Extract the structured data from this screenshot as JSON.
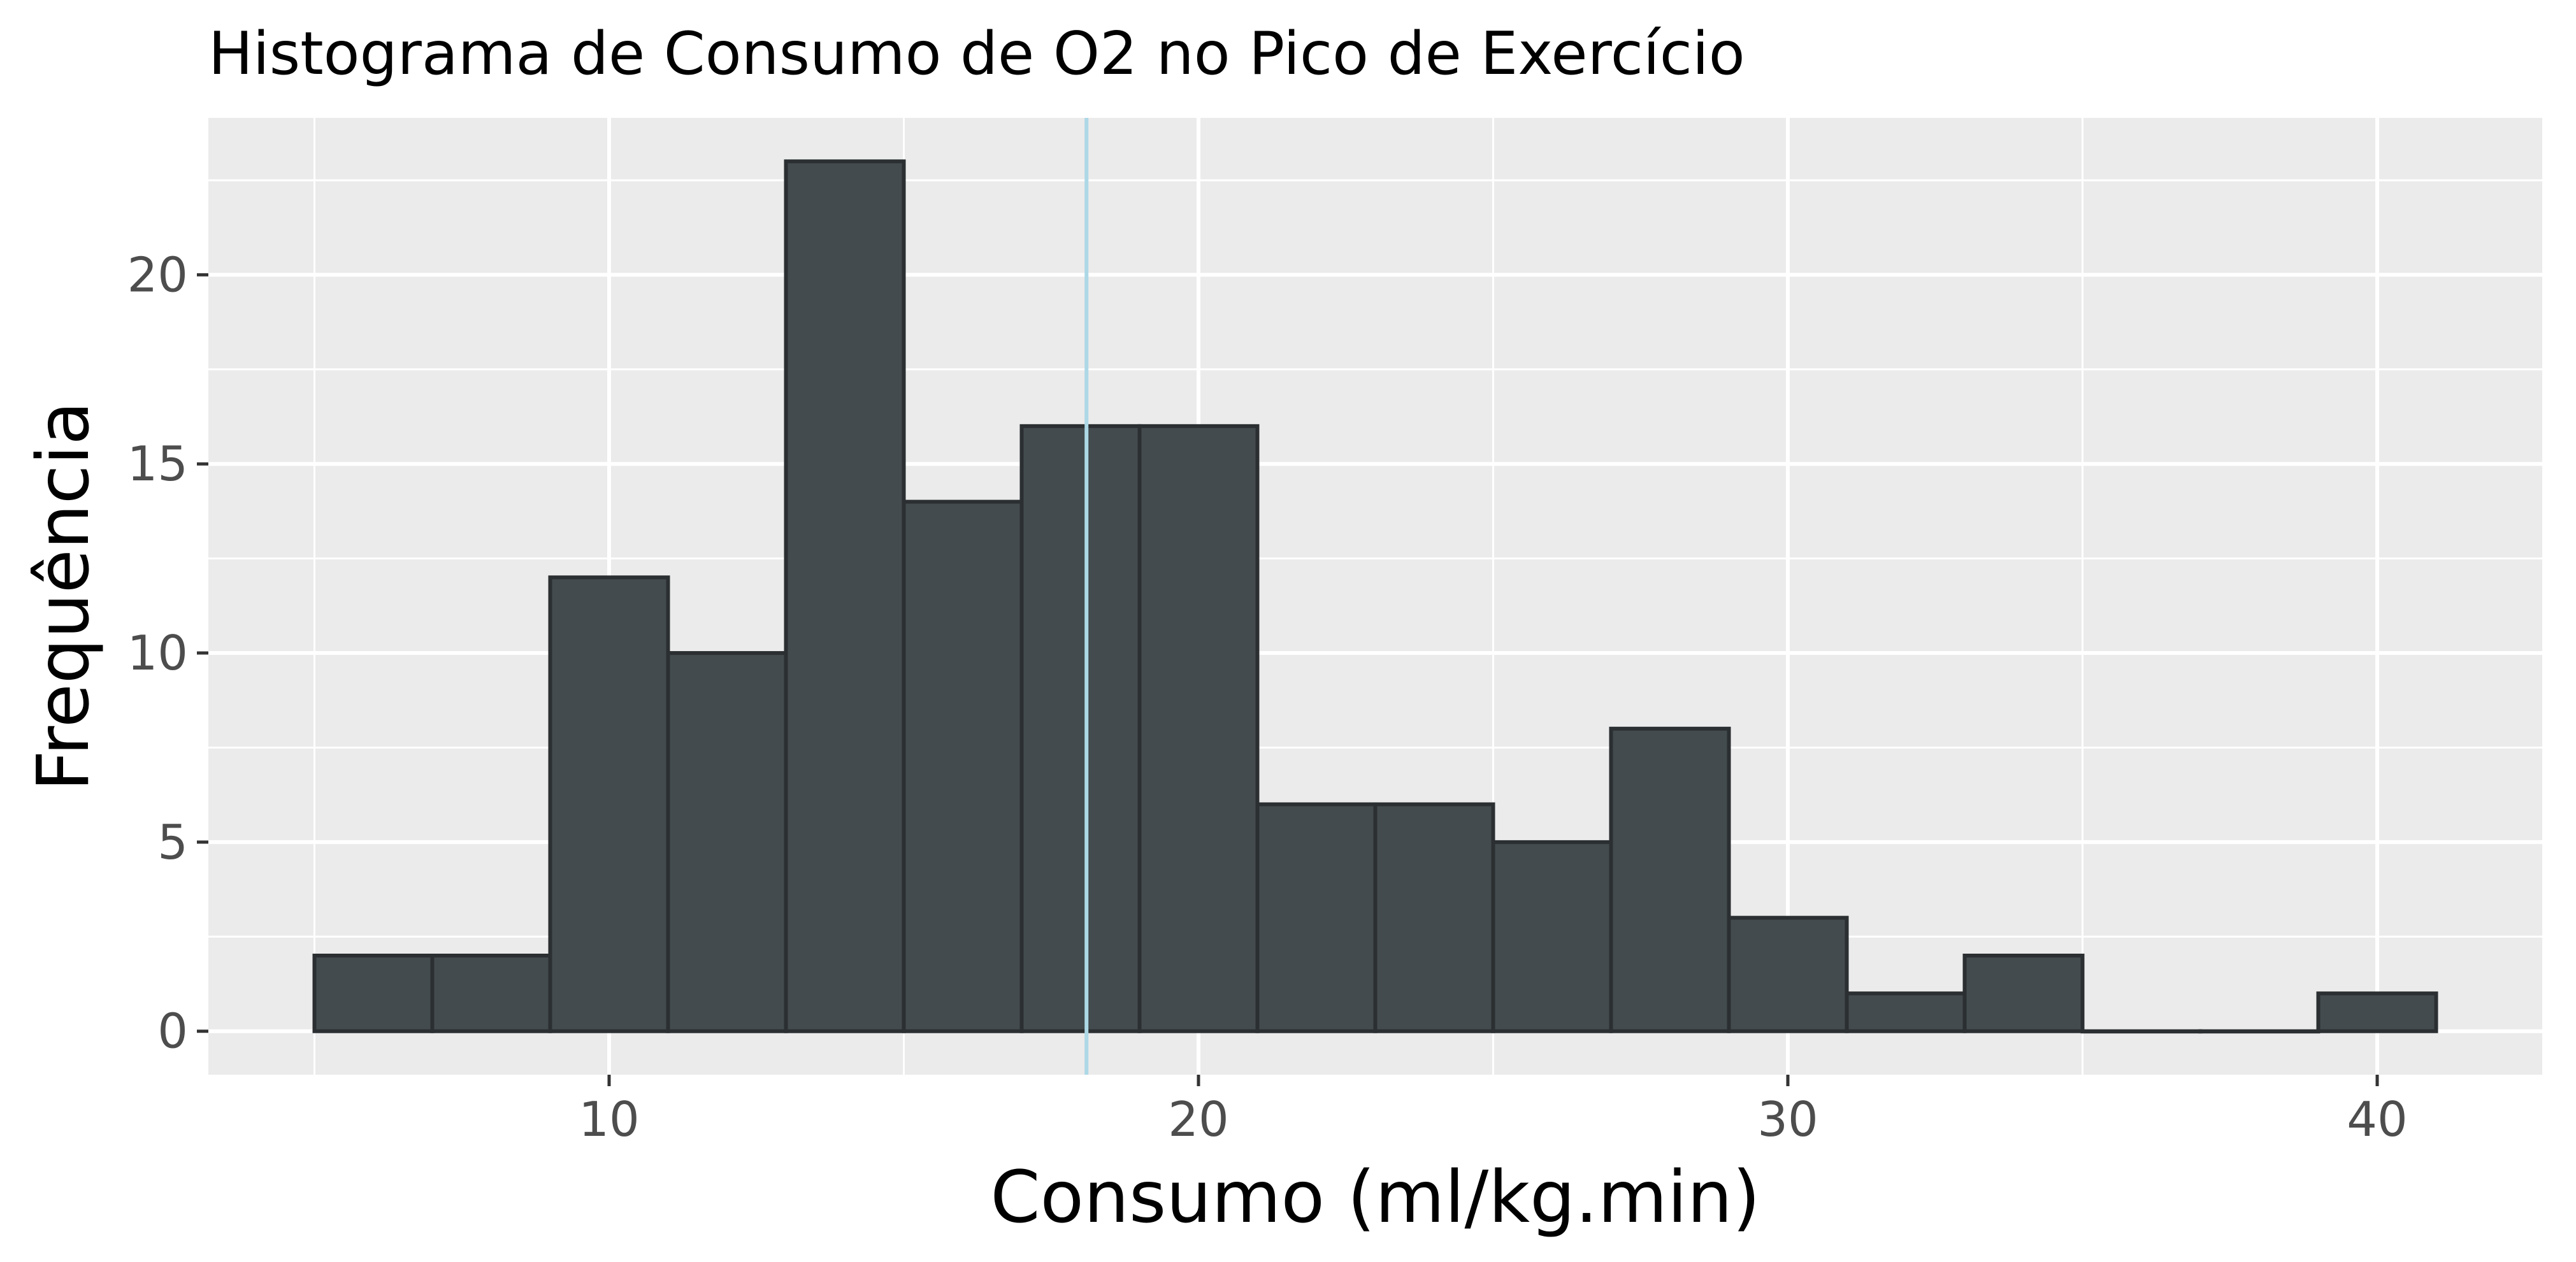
{
  "chart_data": {
    "type": "bar",
    "title": "Histograma de Consumo de O2 no Pico de Exercício",
    "xlabel": "Consumo (ml/kg.min)",
    "ylabel": "Frequência",
    "xlim": [
      3.2,
      42.8
    ],
    "ylim": [
      -1.15,
      24.15
    ],
    "x_ticks": [
      10,
      20,
      30,
      40
    ],
    "y_ticks": [
      0,
      5,
      10,
      15,
      20
    ],
    "grid": true,
    "bins": [
      {
        "start": 5,
        "end": 7,
        "count": 2
      },
      {
        "start": 7,
        "end": 9,
        "count": 2
      },
      {
        "start": 9,
        "end": 11,
        "count": 12
      },
      {
        "start": 11,
        "end": 13,
        "count": 10
      },
      {
        "start": 13,
        "end": 15,
        "count": 23
      },
      {
        "start": 15,
        "end": 17,
        "count": 14
      },
      {
        "start": 17,
        "end": 19,
        "count": 16
      },
      {
        "start": 19,
        "end": 21,
        "count": 16
      },
      {
        "start": 21,
        "end": 23,
        "count": 6
      },
      {
        "start": 23,
        "end": 25,
        "count": 6
      },
      {
        "start": 25,
        "end": 27,
        "count": 5
      },
      {
        "start": 27,
        "end": 29,
        "count": 8
      },
      {
        "start": 29,
        "end": 31,
        "count": 3
      },
      {
        "start": 31,
        "end": 33,
        "count": 1
      },
      {
        "start": 33,
        "end": 35,
        "count": 2
      },
      {
        "start": 35,
        "end": 37,
        "count": 0
      },
      {
        "start": 37,
        "end": 39,
        "count": 0
      },
      {
        "start": 39,
        "end": 41,
        "count": 1
      }
    ],
    "reference_line": {
      "x": 18.1,
      "color": "#add8e6"
    },
    "colors": {
      "bar_fill": "#434b4e",
      "bar_outline": "#2b2f31",
      "panel_background": "#ebebeb",
      "grid": "#ffffff",
      "tick_label": "#4d4d4d"
    }
  }
}
